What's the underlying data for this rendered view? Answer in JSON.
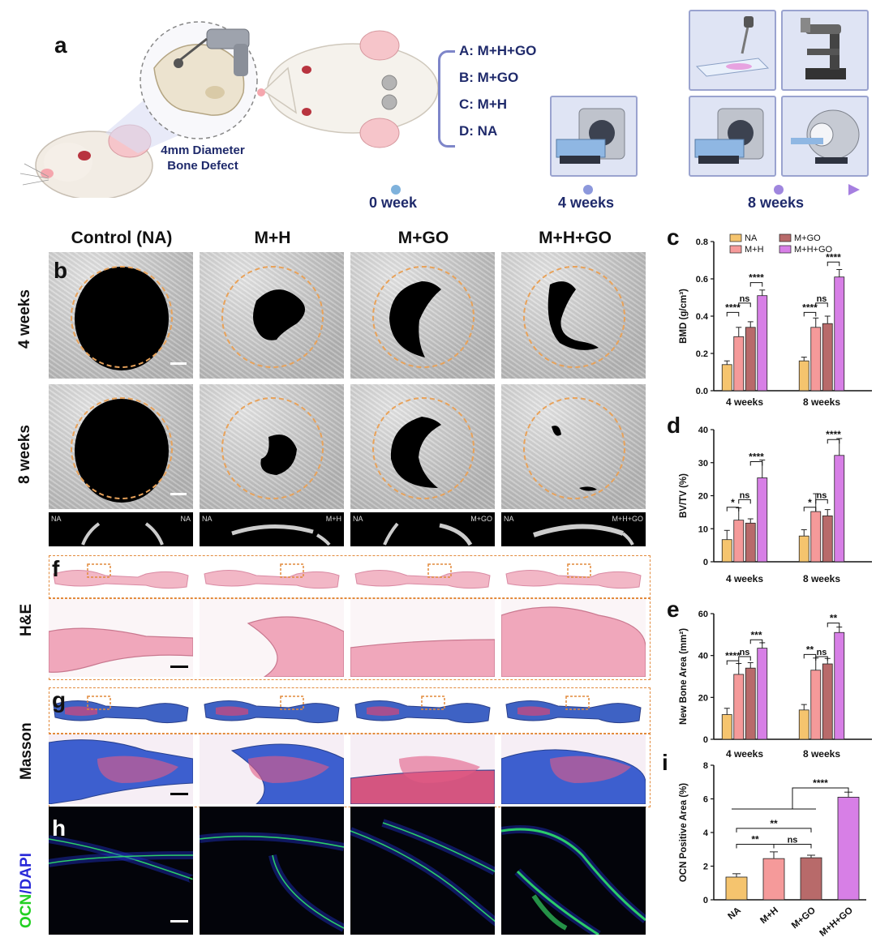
{
  "panel_labels": [
    "a",
    "b",
    "c",
    "d",
    "e",
    "f",
    "g",
    "h",
    "i"
  ],
  "panel_a": {
    "groups": [
      "A: M+H+GO",
      "B: M+GO",
      "C: M+H",
      "D: NA"
    ],
    "defect_caption_line1": "4mm Diameter",
    "defect_caption_line2": "Bone Defect",
    "timeline": [
      "0 week",
      "4 weeks",
      "8 weeks"
    ],
    "icons": [
      "rat-head-icon",
      "skull-drill-icon",
      "rat-defect-icon",
      "micro-ct-icon",
      "microscope-slide-icon",
      "microscope-icon",
      "mri-scanner-icon"
    ]
  },
  "columns": [
    "Control (NA)",
    "M+H",
    "M+GO",
    "M+H+GO"
  ],
  "rows_ct": [
    "4 weeks",
    "8 weeks"
  ],
  "strip_labels": [
    [
      "NA",
      "NA"
    ],
    [
      "NA",
      "M+H"
    ],
    [
      "NA",
      "M+GO"
    ],
    [
      "NA",
      "M+H+GO"
    ]
  ],
  "rows_histo": [
    "H&E",
    "Masson"
  ],
  "row_fluo_part1": "OCN",
  "row_fluo_part2": "/DAPI",
  "colors": {
    "NA": "#f5c46e",
    "M+H": "#f59a9a",
    "M+GO": "#b86a6a",
    "M+H+GO": "#d77fe6",
    "dashed": "#e8a25a",
    "timeline": "#8a7fd8"
  },
  "chart_data": [
    {
      "id": "c",
      "type": "bar",
      "categories": [
        "4 weeks",
        "8 weeks"
      ],
      "ylabel": "BMD (g/cm³)",
      "ylim": [
        0,
        0.8
      ],
      "yticks": [
        "0.0",
        "0.2",
        "0.4",
        "0.6",
        "0.8"
      ],
      "legend": [
        "NA",
        "M+H",
        "M+GO",
        "M+H+GO"
      ],
      "series": [
        {
          "name": "NA",
          "values": [
            0.14,
            0.16
          ],
          "err": [
            0.02,
            0.02
          ]
        },
        {
          "name": "M+H",
          "values": [
            0.29,
            0.34
          ],
          "err": [
            0.05,
            0.05
          ]
        },
        {
          "name": "M+GO",
          "values": [
            0.34,
            0.36
          ],
          "err": [
            0.03,
            0.04
          ]
        },
        {
          "name": "M+H+GO",
          "values": [
            0.51,
            0.61
          ],
          "err": [
            0.03,
            0.04
          ]
        }
      ],
      "sig": [
        {
          "group": 0,
          "from": 0,
          "to": 1,
          "label": "****",
          "level": 0.42
        },
        {
          "group": 0,
          "from": 1,
          "to": 2,
          "label": "ns",
          "level": 0.47
        },
        {
          "group": 0,
          "from": 2,
          "to": 3,
          "label": "****",
          "level": 0.58
        },
        {
          "group": 1,
          "from": 0,
          "to": 1,
          "label": "****",
          "level": 0.42
        },
        {
          "group": 1,
          "from": 1,
          "to": 2,
          "label": "ns",
          "level": 0.47
        },
        {
          "group": 1,
          "from": 2,
          "to": 3,
          "label": "****",
          "level": 0.69
        }
      ]
    },
    {
      "id": "d",
      "type": "bar",
      "categories": [
        "4 weeks",
        "8 weeks"
      ],
      "ylabel": "BV/TV (%)",
      "ylim": [
        0,
        40
      ],
      "yticks": [
        "0",
        "10",
        "20",
        "30",
        "40"
      ],
      "series": [
        {
          "name": "NA",
          "values": [
            6.7,
            7.8
          ],
          "err": [
            2.8,
            1.9
          ]
        },
        {
          "name": "M+H",
          "values": [
            12.6,
            15.2
          ],
          "err": [
            3.7,
            5.4
          ]
        },
        {
          "name": "M+GO",
          "values": [
            11.7,
            13.9
          ],
          "err": [
            1.3,
            1.9
          ]
        },
        {
          "name": "M+H+GO",
          "values": [
            25.4,
            32.2
          ],
          "err": [
            5.4,
            5.1
          ]
        }
      ],
      "sig": [
        {
          "group": 0,
          "from": 0,
          "to": 1,
          "label": "*",
          "level": 16.5
        },
        {
          "group": 0,
          "from": 1,
          "to": 2,
          "label": "ns",
          "level": 18.8
        },
        {
          "group": 0,
          "from": 2,
          "to": 3,
          "label": "****",
          "level": 30.3
        },
        {
          "group": 1,
          "from": 0,
          "to": 1,
          "label": "*",
          "level": 16.5
        },
        {
          "group": 1,
          "from": 1,
          "to": 2,
          "label": "ns",
          "level": 18.8
        },
        {
          "group": 1,
          "from": 2,
          "to": 3,
          "label": "****",
          "level": 37
        }
      ]
    },
    {
      "id": "e",
      "type": "bar",
      "categories": [
        "4 weeks",
        "8 weeks"
      ],
      "ylabel": "New Bone Area (mm²)",
      "ylim": [
        0,
        60
      ],
      "yticks": [
        "0",
        "20",
        "40",
        "60"
      ],
      "series": [
        {
          "name": "NA",
          "values": [
            11.8,
            14.0
          ],
          "err": [
            3.0,
            2.6
          ]
        },
        {
          "name": "M+H",
          "values": [
            31.0,
            33.0
          ],
          "err": [
            5.2,
            5.8
          ]
        },
        {
          "name": "M+GO",
          "values": [
            34.0,
            36.0
          ],
          "err": [
            2.6,
            2.6
          ]
        },
        {
          "name": "M+H+GO",
          "values": [
            43.5,
            51.0
          ],
          "err": [
            2.6,
            2.6
          ]
        }
      ],
      "sig": [
        {
          "group": 0,
          "from": 0,
          "to": 1,
          "label": "****",
          "level": 37.5
        },
        {
          "group": 0,
          "from": 1,
          "to": 2,
          "label": "ns",
          "level": 39.5
        },
        {
          "group": 0,
          "from": 2,
          "to": 3,
          "label": "***",
          "level": 47.5
        },
        {
          "group": 1,
          "from": 0,
          "to": 1,
          "label": "**",
          "level": 40.5
        },
        {
          "group": 1,
          "from": 1,
          "to": 2,
          "label": "ns",
          "level": 39.5
        },
        {
          "group": 1,
          "from": 2,
          "to": 3,
          "label": "**",
          "level": 55.5
        }
      ]
    },
    {
      "id": "i",
      "type": "bar",
      "categories": [
        "NA",
        "M+H",
        "M+GO",
        "M+H+GO"
      ],
      "ylabel": "OCN Positive Area (%)",
      "ylim": [
        0,
        8
      ],
      "yticks": [
        "0",
        "2",
        "4",
        "6",
        "8"
      ],
      "values": [
        1.35,
        2.45,
        2.5,
        6.1
      ],
      "err": [
        0.2,
        0.4,
        0.15,
        0.3
      ],
      "sig": [
        {
          "from": 0,
          "to": 1,
          "label": "**",
          "level": 3.3,
          "type": "pair"
        },
        {
          "from": 1,
          "to": 2,
          "label": "ns",
          "level": 3.3,
          "type": "pair"
        },
        {
          "from": 0,
          "to": 2,
          "label": "**",
          "level": 4.25,
          "type": "pair"
        },
        {
          "from": 0,
          "to": 3,
          "label": "****",
          "level": 6.65,
          "type": "grouped"
        }
      ]
    }
  ]
}
